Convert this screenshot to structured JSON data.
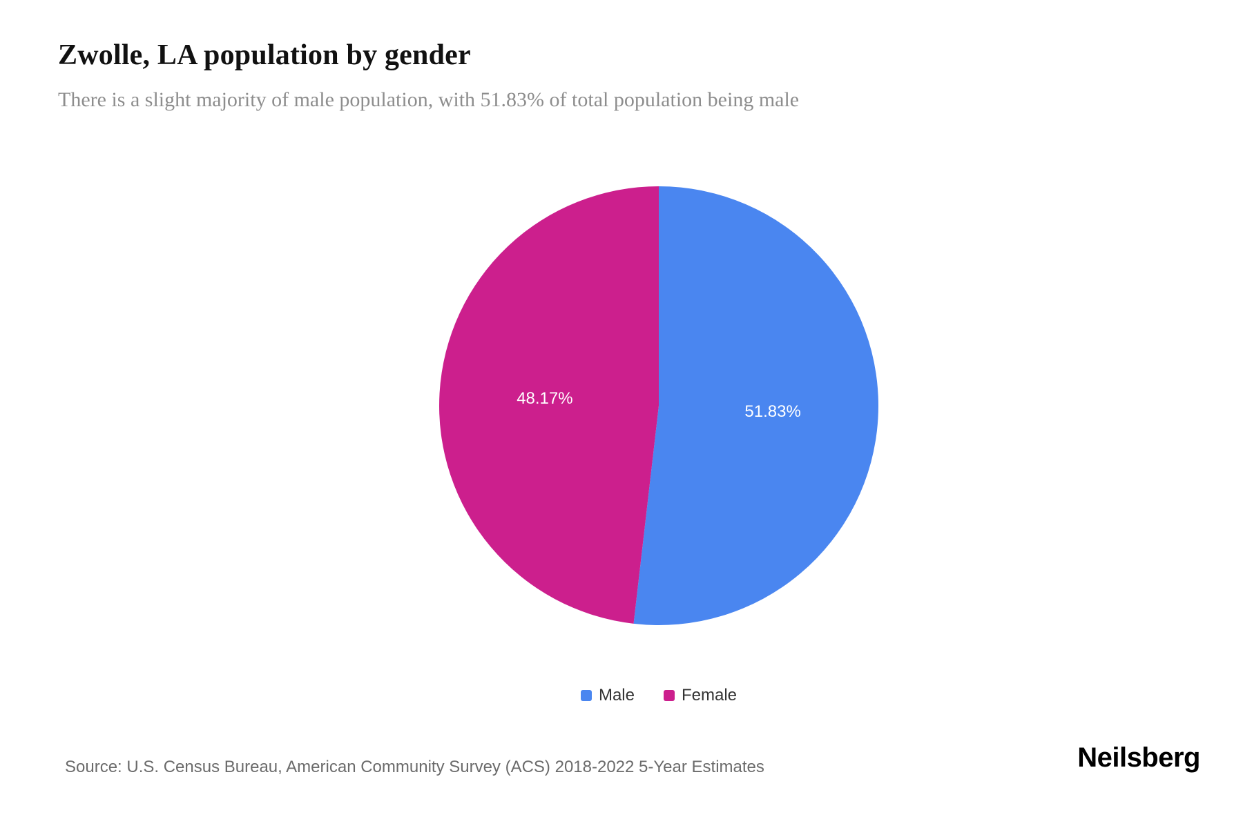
{
  "page": {
    "title": "Zwolle, LA population by gender",
    "subtitle": "There is a slight majority of male population, with 51.83% of total population being male",
    "source": "Source: U.S. Census Bureau, American Community Survey (ACS) 2018-2022 5-Year Estimates",
    "brand": "Neilsberg"
  },
  "chart_data": {
    "type": "pie",
    "title": "Zwolle, LA population by gender",
    "subtitle": "There is a slight majority of male population, with 51.83% of total population being male",
    "slices": [
      {
        "label": "Male",
        "value": 51.83,
        "display": "51.83%",
        "color": "#4A86F0"
      },
      {
        "label": "Female",
        "value": 48.17,
        "display": "48.17%",
        "color": "#CC1F8D"
      }
    ],
    "start_angle_deg": -90,
    "direction": "clockwise",
    "slice_label_color": "#ffffff",
    "legend_position": "bottom",
    "legend_text_color": "#333333"
  }
}
